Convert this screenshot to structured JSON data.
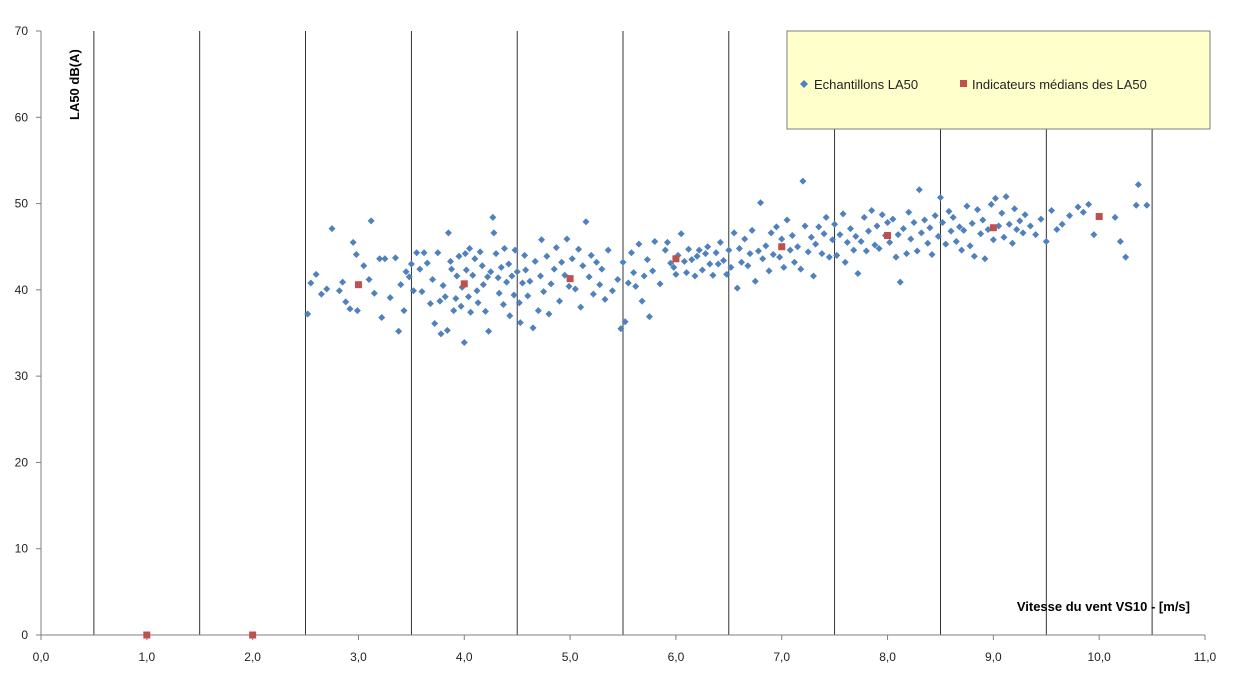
{
  "chart_data": {
    "type": "scatter",
    "xlabel": "Vitesse du vent  VS10 - [m/s]",
    "ylabel": "LA50 dB(A)",
    "xlim": [
      0,
      11
    ],
    "ylim": [
      0,
      70
    ],
    "x_ticks": [
      "0,0",
      "1,0",
      "2,0",
      "3,0",
      "4,0",
      "5,0",
      "6,0",
      "7,0",
      "8,0",
      "9,0",
      "10,0",
      "11,0"
    ],
    "y_ticks": [
      "0",
      "10",
      "20",
      "30",
      "40",
      "50",
      "60",
      "70"
    ],
    "vertical_gridlines_at": [
      0.5,
      1.5,
      2.5,
      3.5,
      4.5,
      5.5,
      6.5,
      7.5,
      8.5,
      9.5,
      10.5
    ],
    "legend_position": "top-right",
    "colors": {
      "samples": "#4f81bd",
      "medians": "#c0504d",
      "legend_bg": "#ffffcc",
      "grid": "#000000"
    },
    "series": [
      {
        "name": "Echantillons LA50",
        "marker": "diamond",
        "points": [
          [
            2.52,
            37.2
          ],
          [
            2.55,
            40.8
          ],
          [
            2.6,
            41.8
          ],
          [
            2.65,
            39.5
          ],
          [
            2.7,
            40.1
          ],
          [
            2.75,
            47.1
          ],
          [
            2.82,
            39.9
          ],
          [
            2.85,
            40.9
          ],
          [
            2.88,
            38.6
          ],
          [
            2.92,
            37.8
          ],
          [
            2.95,
            45.5
          ],
          [
            2.98,
            44.1
          ],
          [
            2.99,
            37.6
          ],
          [
            3.05,
            42.8
          ],
          [
            3.1,
            41.2
          ],
          [
            3.12,
            48.0
          ],
          [
            3.15,
            39.6
          ],
          [
            3.2,
            43.6
          ],
          [
            3.22,
            36.8
          ],
          [
            3.25,
            43.6
          ],
          [
            3.3,
            39.1
          ],
          [
            3.35,
            43.7
          ],
          [
            3.38,
            35.2
          ],
          [
            3.4,
            40.6
          ],
          [
            3.43,
            37.6
          ],
          [
            3.45,
            42.1
          ],
          [
            3.48,
            41.5
          ],
          [
            3.5,
            43.0
          ],
          [
            3.52,
            39.9
          ],
          [
            3.55,
            44.3
          ],
          [
            3.58,
            42.4
          ],
          [
            3.6,
            39.8
          ],
          [
            3.62,
            44.3
          ],
          [
            3.65,
            43.1
          ],
          [
            3.68,
            38.4
          ],
          [
            3.7,
            41.2
          ],
          [
            3.72,
            36.1
          ],
          [
            3.75,
            44.3
          ],
          [
            3.77,
            38.7
          ],
          [
            3.78,
            34.9
          ],
          [
            3.8,
            40.5
          ],
          [
            3.82,
            39.2
          ],
          [
            3.84,
            35.3
          ],
          [
            3.85,
            46.6
          ],
          [
            3.87,
            43.3
          ],
          [
            3.88,
            42.4
          ],
          [
            3.9,
            37.6
          ],
          [
            3.92,
            39.0
          ],
          [
            3.93,
            41.6
          ],
          [
            3.95,
            43.9
          ],
          [
            3.97,
            38.1
          ],
          [
            3.98,
            40.3
          ],
          [
            4.0,
            33.9
          ],
          [
            4.01,
            44.2
          ],
          [
            4.02,
            42.3
          ],
          [
            4.04,
            39.2
          ],
          [
            4.05,
            44.8
          ],
          [
            4.06,
            37.4
          ],
          [
            4.08,
            41.7
          ],
          [
            4.1,
            43.6
          ],
          [
            4.12,
            39.9
          ],
          [
            4.13,
            38.5
          ],
          [
            4.15,
            44.4
          ],
          [
            4.17,
            42.8
          ],
          [
            4.18,
            40.6
          ],
          [
            4.2,
            37.5
          ],
          [
            4.22,
            41.5
          ],
          [
            4.23,
            35.2
          ],
          [
            4.25,
            42.1
          ],
          [
            4.27,
            48.4
          ],
          [
            4.28,
            46.6
          ],
          [
            4.3,
            44.2
          ],
          [
            4.32,
            41.4
          ],
          [
            4.33,
            39.6
          ],
          [
            4.35,
            42.6
          ],
          [
            4.37,
            38.3
          ],
          [
            4.38,
            44.8
          ],
          [
            4.4,
            40.9
          ],
          [
            4.42,
            43.0
          ],
          [
            4.43,
            37.0
          ],
          [
            4.45,
            41.6
          ],
          [
            4.47,
            39.4
          ],
          [
            4.48,
            44.6
          ],
          [
            4.5,
            42.1
          ],
          [
            4.52,
            38.5
          ],
          [
            4.53,
            36.2
          ],
          [
            4.55,
            40.8
          ],
          [
            4.57,
            44.0
          ],
          [
            4.58,
            42.3
          ],
          [
            4.6,
            39.3
          ],
          [
            4.62,
            41.0
          ],
          [
            4.65,
            35.6
          ],
          [
            4.67,
            43.3
          ],
          [
            4.7,
            37.6
          ],
          [
            4.72,
            41.6
          ],
          [
            4.73,
            45.8
          ],
          [
            4.75,
            39.8
          ],
          [
            4.78,
            43.9
          ],
          [
            4.8,
            37.2
          ],
          [
            4.82,
            40.7
          ],
          [
            4.85,
            42.4
          ],
          [
            4.87,
            44.9
          ],
          [
            4.9,
            38.7
          ],
          [
            4.92,
            43.2
          ],
          [
            4.95,
            41.7
          ],
          [
            4.97,
            45.9
          ],
          [
            4.99,
            40.4
          ],
          [
            5.02,
            43.6
          ],
          [
            5.05,
            40.1
          ],
          [
            5.08,
            44.7
          ],
          [
            5.1,
            38.0
          ],
          [
            5.12,
            42.8
          ],
          [
            5.15,
            47.9
          ],
          [
            5.18,
            41.5
          ],
          [
            5.2,
            44.0
          ],
          [
            5.22,
            39.5
          ],
          [
            5.25,
            43.2
          ],
          [
            5.28,
            40.6
          ],
          [
            5.3,
            42.4
          ],
          [
            5.33,
            38.9
          ],
          [
            5.36,
            44.6
          ],
          [
            5.4,
            39.9
          ],
          [
            5.45,
            41.2
          ],
          [
            5.48,
            35.5
          ],
          [
            5.5,
            43.2
          ],
          [
            5.52,
            36.3
          ],
          [
            5.55,
            40.8
          ],
          [
            5.58,
            44.3
          ],
          [
            5.6,
            42.0
          ],
          [
            5.62,
            40.4
          ],
          [
            5.65,
            45.3
          ],
          [
            5.68,
            38.7
          ],
          [
            5.7,
            41.6
          ],
          [
            5.73,
            43.5
          ],
          [
            5.75,
            36.9
          ],
          [
            5.78,
            42.2
          ],
          [
            5.8,
            45.6
          ],
          [
            5.85,
            40.7
          ],
          [
            5.9,
            44.6
          ],
          [
            5.92,
            45.5
          ],
          [
            5.95,
            43.1
          ],
          [
            5.98,
            42.6
          ],
          [
            6.0,
            41.8
          ],
          [
            6.02,
            44.0
          ],
          [
            6.05,
            46.5
          ],
          [
            6.08,
            43.3
          ],
          [
            6.1,
            42.0
          ],
          [
            6.12,
            44.7
          ],
          [
            6.15,
            43.5
          ],
          [
            6.18,
            41.6
          ],
          [
            6.2,
            43.9
          ],
          [
            6.22,
            44.6
          ],
          [
            6.25,
            42.3
          ],
          [
            6.28,
            44.2
          ],
          [
            6.3,
            45.0
          ],
          [
            6.32,
            43.0
          ],
          [
            6.35,
            41.7
          ],
          [
            6.38,
            44.3
          ],
          [
            6.4,
            43.0
          ],
          [
            6.42,
            45.5
          ],
          [
            6.45,
            43.4
          ],
          [
            6.48,
            41.8
          ],
          [
            6.5,
            44.6
          ],
          [
            6.52,
            42.6
          ],
          [
            6.55,
            46.6
          ],
          [
            6.58,
            40.2
          ],
          [
            6.6,
            44.8
          ],
          [
            6.62,
            43.2
          ],
          [
            6.65,
            45.9
          ],
          [
            6.68,
            42.8
          ],
          [
            6.7,
            44.2
          ],
          [
            6.72,
            46.9
          ],
          [
            6.75,
            41.0
          ],
          [
            6.78,
            44.5
          ],
          [
            6.8,
            50.1
          ],
          [
            6.82,
            43.6
          ],
          [
            6.85,
            45.1
          ],
          [
            6.88,
            42.2
          ],
          [
            6.9,
            46.6
          ],
          [
            6.92,
            44.1
          ],
          [
            6.95,
            47.3
          ],
          [
            6.98,
            43.8
          ],
          [
            7.0,
            45.9
          ],
          [
            7.02,
            42.6
          ],
          [
            7.05,
            48.1
          ],
          [
            7.08,
            44.6
          ],
          [
            7.1,
            46.3
          ],
          [
            7.12,
            43.2
          ],
          [
            7.15,
            45.0
          ],
          [
            7.18,
            42.4
          ],
          [
            7.2,
            52.6
          ],
          [
            7.22,
            47.4
          ],
          [
            7.25,
            44.4
          ],
          [
            7.28,
            46.1
          ],
          [
            7.3,
            41.6
          ],
          [
            7.32,
            45.3
          ],
          [
            7.35,
            47.3
          ],
          [
            7.38,
            44.2
          ],
          [
            7.4,
            46.5
          ],
          [
            7.42,
            48.4
          ],
          [
            7.45,
            43.8
          ],
          [
            7.48,
            45.8
          ],
          [
            7.5,
            47.6
          ],
          [
            7.52,
            44.0
          ],
          [
            7.55,
            46.4
          ],
          [
            7.58,
            48.8
          ],
          [
            7.6,
            43.2
          ],
          [
            7.62,
            45.5
          ],
          [
            7.65,
            47.1
          ],
          [
            7.68,
            44.6
          ],
          [
            7.7,
            46.2
          ],
          [
            7.72,
            41.9
          ],
          [
            7.75,
            45.6
          ],
          [
            7.78,
            48.4
          ],
          [
            7.8,
            44.5
          ],
          [
            7.82,
            46.8
          ],
          [
            7.85,
            49.2
          ],
          [
            7.88,
            45.2
          ],
          [
            7.9,
            47.4
          ],
          [
            7.92,
            44.8
          ],
          [
            7.95,
            48.7
          ],
          [
            7.98,
            46.3
          ],
          [
            8.0,
            47.8
          ],
          [
            8.02,
            45.5
          ],
          [
            8.05,
            48.2
          ],
          [
            8.08,
            43.8
          ],
          [
            8.1,
            46.4
          ],
          [
            8.12,
            40.9
          ],
          [
            8.15,
            47.1
          ],
          [
            8.18,
            44.2
          ],
          [
            8.2,
            49.0
          ],
          [
            8.22,
            45.9
          ],
          [
            8.25,
            47.8
          ],
          [
            8.28,
            44.5
          ],
          [
            8.3,
            51.6
          ],
          [
            8.32,
            46.6
          ],
          [
            8.35,
            48.1
          ],
          [
            8.38,
            45.4
          ],
          [
            8.4,
            47.2
          ],
          [
            8.42,
            44.1
          ],
          [
            8.45,
            48.6
          ],
          [
            8.48,
            46.2
          ],
          [
            8.5,
            50.7
          ],
          [
            8.52,
            47.8
          ],
          [
            8.55,
            45.3
          ],
          [
            8.58,
            49.1
          ],
          [
            8.6,
            46.8
          ],
          [
            8.62,
            48.4
          ],
          [
            8.65,
            45.6
          ],
          [
            8.68,
            47.3
          ],
          [
            8.7,
            44.6
          ],
          [
            8.72,
            46.9
          ],
          [
            8.75,
            49.7
          ],
          [
            8.78,
            45.1
          ],
          [
            8.8,
            47.7
          ],
          [
            8.82,
            43.9
          ],
          [
            8.85,
            49.3
          ],
          [
            8.88,
            46.5
          ],
          [
            8.9,
            48.1
          ],
          [
            8.92,
            43.6
          ],
          [
            8.95,
            47.0
          ],
          [
            8.98,
            49.9
          ],
          [
            9.0,
            45.8
          ],
          [
            9.02,
            50.6
          ],
          [
            9.05,
            47.4
          ],
          [
            9.08,
            48.9
          ],
          [
            9.1,
            46.1
          ],
          [
            9.12,
            50.8
          ],
          [
            9.15,
            47.6
          ],
          [
            9.18,
            45.4
          ],
          [
            9.2,
            49.4
          ],
          [
            9.22,
            47.0
          ],
          [
            9.25,
            48.0
          ],
          [
            9.28,
            46.6
          ],
          [
            9.3,
            48.7
          ],
          [
            9.35,
            47.4
          ],
          [
            9.4,
            46.4
          ],
          [
            9.45,
            48.2
          ],
          [
            9.5,
            45.6
          ],
          [
            9.55,
            49.2
          ],
          [
            9.6,
            47.0
          ],
          [
            9.65,
            47.6
          ],
          [
            9.72,
            48.6
          ],
          [
            9.8,
            49.6
          ],
          [
            9.85,
            49.0
          ],
          [
            9.9,
            49.9
          ],
          [
            9.95,
            46.4
          ],
          [
            10.15,
            48.4
          ],
          [
            10.2,
            45.6
          ],
          [
            10.25,
            43.8
          ],
          [
            10.35,
            49.8
          ],
          [
            10.37,
            52.2
          ],
          [
            10.45,
            49.8
          ]
        ]
      },
      {
        "name": "Indicateurs médians des LA50",
        "marker": "square",
        "points": [
          [
            1.0,
            0.0
          ],
          [
            2.0,
            0.0
          ],
          [
            3.0,
            40.6
          ],
          [
            4.0,
            40.7
          ],
          [
            5.0,
            41.3
          ],
          [
            6.0,
            43.6
          ],
          [
            7.0,
            45.0
          ],
          [
            8.0,
            46.3
          ],
          [
            9.0,
            47.2
          ],
          [
            10.0,
            48.5
          ]
        ]
      }
    ]
  }
}
